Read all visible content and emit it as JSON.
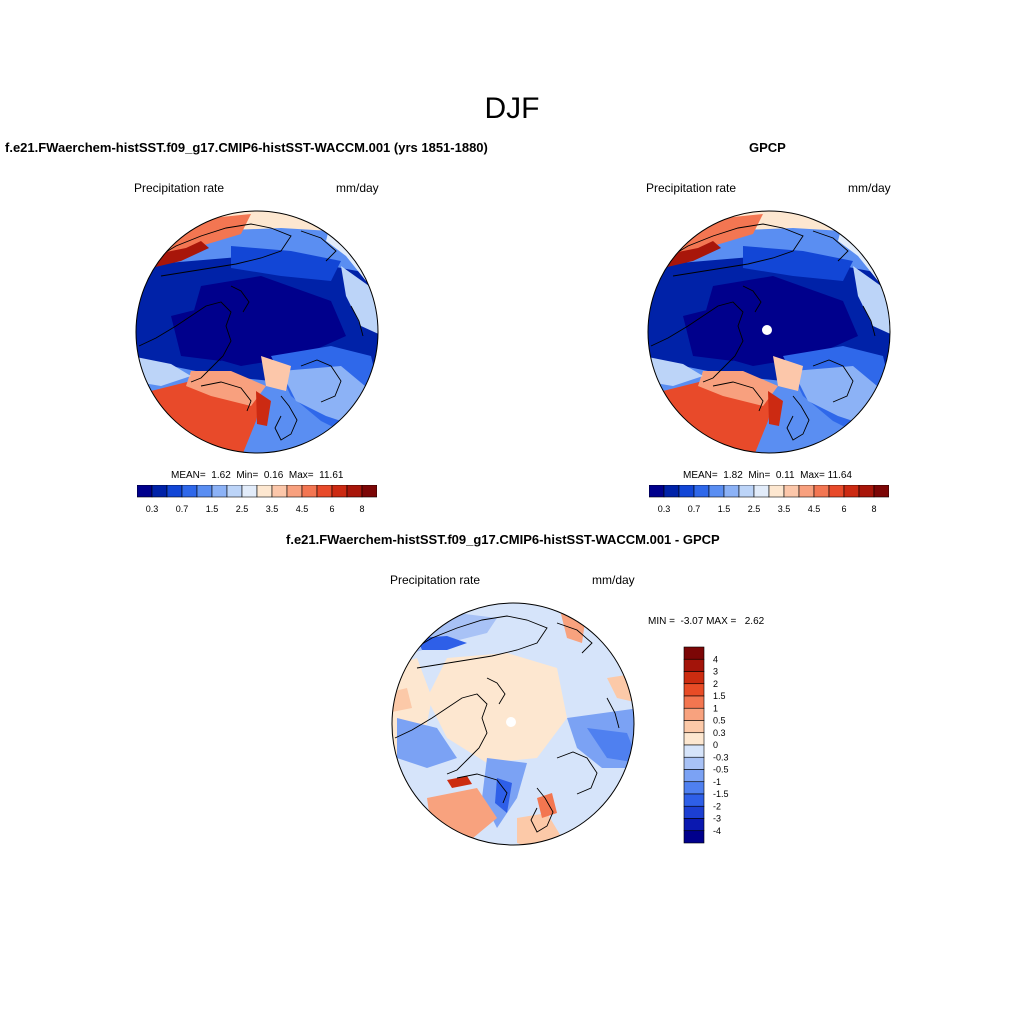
{
  "figure": {
    "season_title": "DJF",
    "colors": {
      "abs_scale": [
        "#00008c",
        "#0022a8",
        "#1246d6",
        "#2f68ea",
        "#5a8ef2",
        "#8cb2f6",
        "#bcd4f8",
        "#e2ecfa",
        "#fde7d0",
        "#fcc7aa",
        "#f8a07e",
        "#f37652",
        "#e84a2a",
        "#cc2a12",
        "#a8160a",
        "#7c0606"
      ],
      "diff_scale": [
        "#00008c",
        "#0a18b0",
        "#1c3fd2",
        "#2e5fe8",
        "#4f80f0",
        "#7ba2f4",
        "#a8c2f6",
        "#d6e4fa",
        "#fde7d0",
        "#fcc9a8",
        "#f8a27e",
        "#f37650",
        "#e84c26",
        "#cc2c10",
        "#a3140a",
        "#7c0606"
      ]
    }
  },
  "chart_data": [
    {
      "type": "heatmap",
      "panel": "model",
      "title": "f.e21.FWaerchem-histSST.f09_g17.CMIP6-histSST-WACCM.001 (yrs 1851-1880)",
      "left_label": "Precipitation rate",
      "right_label": "mm/day",
      "stats": {
        "mean_label": "MEAN=",
        "mean": "1.62",
        "min_label": "Min=",
        "min": "0.16",
        "max_label": "Max=",
        "max": "11.61"
      },
      "colorbar": {
        "orientation": "horizontal",
        "levels": [
          0.2,
          0.3,
          0.5,
          0.7,
          1,
          1.5,
          2,
          2.5,
          3,
          3.5,
          4,
          4.5,
          5,
          6,
          7,
          8
        ],
        "tick_labels": [
          "0.3",
          "0.7",
          "1.5",
          "2.5",
          "3.5",
          "4.5",
          "6",
          "8"
        ]
      }
    },
    {
      "type": "heatmap",
      "panel": "observations",
      "title": "GPCP",
      "left_label": "Precipitation rate",
      "right_label": "mm/day",
      "stats": {
        "mean_label": "MEAN=",
        "mean": "1.82",
        "min_label": "Min=",
        "min": "0.11",
        "max_label": "Max=",
        "max": "11.64"
      },
      "colorbar": {
        "orientation": "horizontal",
        "levels": [
          0.2,
          0.3,
          0.5,
          0.7,
          1,
          1.5,
          2,
          2.5,
          3,
          3.5,
          4,
          4.5,
          5,
          6,
          7,
          8
        ],
        "tick_labels": [
          "0.3",
          "0.7",
          "1.5",
          "2.5",
          "3.5",
          "4.5",
          "6",
          "8"
        ]
      }
    },
    {
      "type": "heatmap",
      "panel": "difference",
      "title": "f.e21.FWaerchem-histSST.f09_g17.CMIP6-histSST-WACCM.001 - GPCP",
      "left_label": "Precipitation rate",
      "right_label": "mm/day",
      "stats": {
        "min_label": "MIN =",
        "min": "-3.07",
        "max_label": "MAX =",
        "max": "2.62"
      },
      "colorbar": {
        "orientation": "vertical",
        "tick_labels": [
          "4",
          "3",
          "2",
          "1.5",
          "1",
          "0.5",
          "0.3",
          "0",
          "-0.3",
          "-0.5",
          "-1",
          "-1.5",
          "-2",
          "-3",
          "-4"
        ]
      }
    }
  ]
}
